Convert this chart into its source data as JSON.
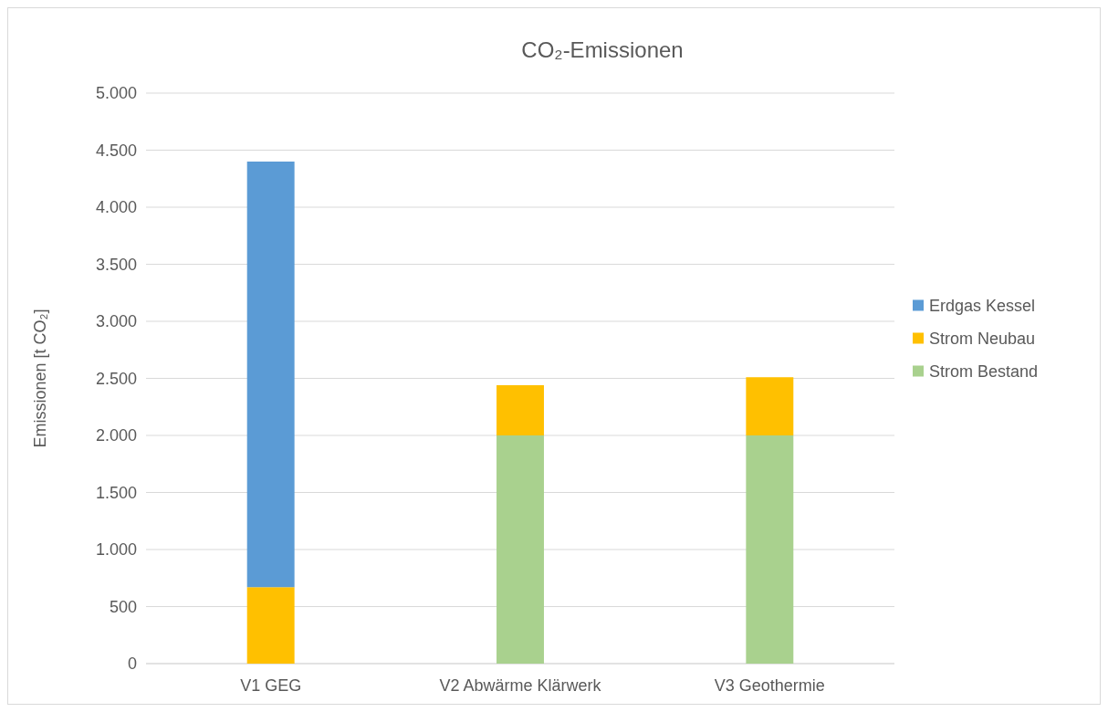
{
  "chart_data": {
    "type": "bar",
    "title": "CO₂-Emissionen",
    "ylabel": "Emissionen  [t CO₂]",
    "categories": [
      "V1 GEG",
      "V2 Abwärme Klärwerk",
      "V3 Geothermie"
    ],
    "stacked": true,
    "series": [
      {
        "name": "Strom Bestand",
        "color": "#a9d18e",
        "values": [
          null,
          2000,
          2000
        ]
      },
      {
        "name": "Strom Neubau",
        "color": "#ffc000",
        "values": [
          670,
          440,
          510
        ]
      },
      {
        "name": "Erdgas Kessel",
        "color": "#5b9bd5",
        "values": [
          3730,
          null,
          null
        ]
      }
    ],
    "ylim": [
      0,
      5000
    ],
    "yticks": [
      0,
      500,
      {
        "value": 1000,
        "label": "1.000"
      },
      {
        "value": 1500,
        "label": "1.500"
      },
      {
        "value": 2000,
        "label": "2.000"
      },
      {
        "value": 2500,
        "label": "2.500"
      },
      {
        "value": 3000,
        "label": "3.000"
      },
      {
        "value": 3500,
        "label": "3.500"
      },
      {
        "value": 4000,
        "label": "4.000"
      },
      {
        "value": 4500,
        "label": "4.500"
      },
      {
        "value": 5000,
        "label": "5.000"
      }
    ],
    "grid": "y",
    "legend": "right"
  }
}
